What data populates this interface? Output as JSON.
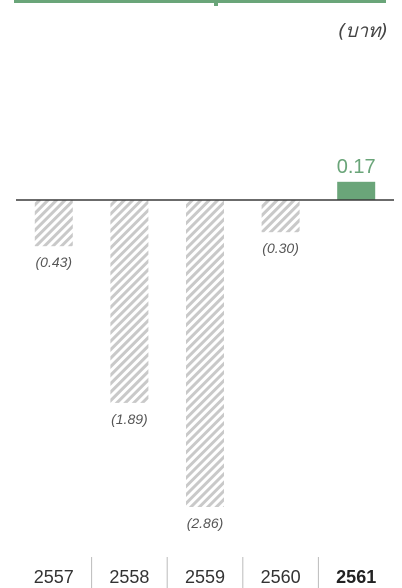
{
  "unit_label": "(บาท)",
  "chart_data": {
    "type": "bar",
    "title": "",
    "xlabel": "",
    "ylabel": "",
    "categories": [
      "2557",
      "2558",
      "2559",
      "2560",
      "2561"
    ],
    "values": [
      -0.43,
      -1.89,
      -2.86,
      -0.3,
      0.17
    ],
    "value_labels": [
      "(0.43)",
      "(1.89)",
      "(2.86)",
      "(0.30)",
      "0.17"
    ],
    "highlight_index": 4,
    "ylim": [
      -2.86,
      0.17
    ],
    "colors": {
      "negative_hatch": "#c9c9c9",
      "positive": "#6aa579",
      "positive_label": "#6aa579",
      "axis": "#3a3a3a",
      "label": "#555555"
    }
  }
}
